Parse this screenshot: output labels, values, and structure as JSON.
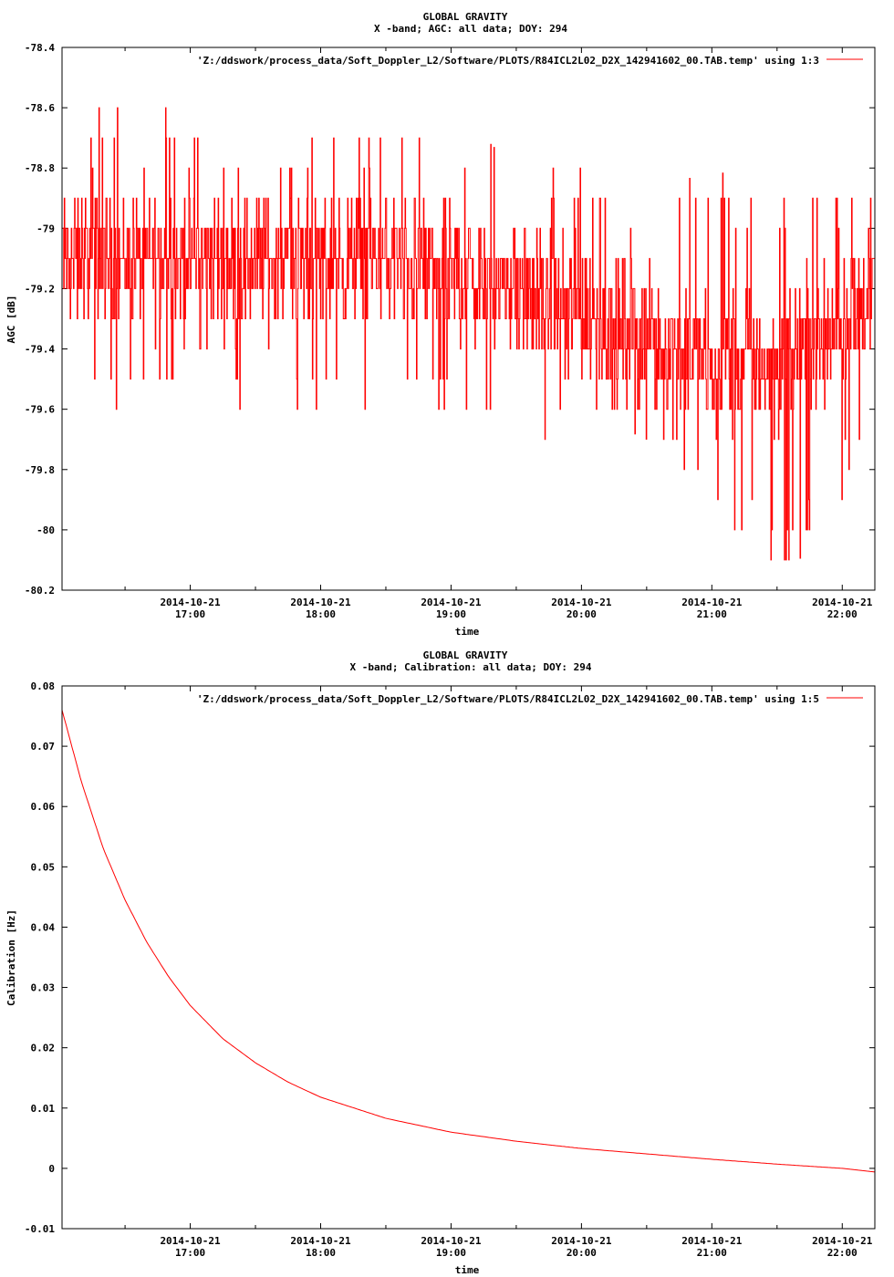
{
  "chart_data": [
    {
      "type": "line",
      "title": "GLOBAL GRAVITY",
      "subtitle": "X -band; AGC: all data; DOY: 294",
      "xlabel": "time",
      "ylabel": "AGC [dB]",
      "ylim": [
        -80.2,
        -78.4
      ],
      "yticks": [
        -78.4,
        -78.6,
        -78.8,
        -79,
        -79.2,
        -79.4,
        -79.6,
        -79.8,
        -80,
        -80.2
      ],
      "ytick_labels": [
        "-78.4",
        "-78.6",
        "-78.8",
        "-79",
        "-79.2",
        "-79.4",
        "-79.6",
        "-79.8",
        "-80",
        "-80.2"
      ],
      "xlim": [
        "2014-10-21 16:01",
        "2014-10-21 22:15"
      ],
      "xticks": [
        "2014-10-21 17:00",
        "2014-10-21 18:00",
        "2014-10-21 19:00",
        "2014-10-21 20:00",
        "2014-10-21 21:00",
        "2014-10-21 22:00"
      ],
      "xtick_labels": [
        {
          "date": "2014-10-21",
          "time": "17:00"
        },
        {
          "date": "2014-10-21",
          "time": "18:00"
        },
        {
          "date": "2014-10-21",
          "time": "19:00"
        },
        {
          "date": "2014-10-21",
          "time": "20:00"
        },
        {
          "date": "2014-10-21",
          "time": "21:00"
        },
        {
          "date": "2014-10-21",
          "time": "22:00"
        }
      ],
      "legend": "top-right",
      "grid": false,
      "series": [
        {
          "name": "'Z:/ddswork/process_data/Soft_Doppler_L2/Software/PLOTS/R84ICL2L02_D2X_142941602_00.TAB.temp' using 1:3",
          "color": "#ff0000",
          "style": "noisy",
          "x": [
            "2014-10-21 16:01",
            "2014-10-21 16:30",
            "2014-10-21 17:00",
            "2014-10-21 17:30",
            "2014-10-21 18:00",
            "2014-10-21 18:30",
            "2014-10-21 19:00",
            "2014-10-21 19:30",
            "2014-10-21 20:00",
            "2014-10-21 20:30",
            "2014-10-21 21:00",
            "2014-10-21 21:30",
            "2014-10-21 22:00",
            "2014-10-21 22:15"
          ],
          "mean": [
            -79.1,
            -79.1,
            -79.1,
            -79.1,
            -79.1,
            -79.1,
            -79.15,
            -79.2,
            -79.3,
            -79.35,
            -79.45,
            -79.45,
            -79.3,
            -79.2
          ],
          "upper": [
            -78.6,
            -78.6,
            -78.6,
            -78.7,
            -78.6,
            -78.7,
            -78.6,
            -78.8,
            -78.8,
            -78.9,
            -78.8,
            -78.9,
            -78.8,
            -78.8
          ],
          "lower": [
            -79.6,
            -79.6,
            -79.5,
            -79.7,
            -79.6,
            -79.6,
            -79.6,
            -79.8,
            -79.6,
            -79.7,
            -79.9,
            -80.2,
            -79.9,
            -79.6
          ]
        }
      ]
    },
    {
      "type": "line",
      "title": "GLOBAL GRAVITY",
      "subtitle": "X -band; Calibration: all data; DOY: 294",
      "xlabel": "time",
      "ylabel": "Calibration [Hz]",
      "ylim": [
        -0.01,
        0.08
      ],
      "yticks": [
        0.08,
        0.07,
        0.06,
        0.05,
        0.04,
        0.03,
        0.02,
        0.01,
        0,
        -0.01
      ],
      "ytick_labels": [
        "0.08",
        "0.07",
        "0.06",
        "0.05",
        "0.04",
        "0.03",
        "0.02",
        "0.01",
        "0",
        "-0.01"
      ],
      "xlim": [
        "2014-10-21 16:01",
        "2014-10-21 22:15"
      ],
      "xticks": [
        "2014-10-21 17:00",
        "2014-10-21 18:00",
        "2014-10-21 19:00",
        "2014-10-21 20:00",
        "2014-10-21 21:00",
        "2014-10-21 22:00"
      ],
      "xtick_labels": [
        {
          "date": "2014-10-21",
          "time": "17:00"
        },
        {
          "date": "2014-10-21",
          "time": "18:00"
        },
        {
          "date": "2014-10-21",
          "time": "19:00"
        },
        {
          "date": "2014-10-21",
          "time": "20:00"
        },
        {
          "date": "2014-10-21",
          "time": "21:00"
        },
        {
          "date": "2014-10-21",
          "time": "22:00"
        }
      ],
      "legend": "top-right",
      "grid": false,
      "series": [
        {
          "name": "'Z:/ddswork/process_data/Soft_Doppler_L2/Software/PLOTS/R84ICL2L02_D2X_142941602_00.TAB.temp' using 1:5",
          "color": "#ff0000",
          "style": "smooth",
          "x": [
            "2014-10-21 16:01",
            "2014-10-21 16:10",
            "2014-10-21 16:20",
            "2014-10-21 16:30",
            "2014-10-21 16:40",
            "2014-10-21 16:50",
            "2014-10-21 17:00",
            "2014-10-21 17:15",
            "2014-10-21 17:30",
            "2014-10-21 17:45",
            "2014-10-21 18:00",
            "2014-10-21 18:30",
            "2014-10-21 19:00",
            "2014-10-21 19:30",
            "2014-10-21 20:00",
            "2014-10-21 20:30",
            "2014-10-21 21:00",
            "2014-10-21 21:30",
            "2014-10-21 22:00",
            "2014-10-21 22:15"
          ],
          "values": [
            0.076,
            0.064,
            0.053,
            0.0445,
            0.0375,
            0.0318,
            0.027,
            0.0215,
            0.0175,
            0.0143,
            0.0118,
            0.0083,
            0.006,
            0.0045,
            0.0033,
            0.0024,
            0.0015,
            0.0007,
            0.0,
            -0.0006
          ]
        }
      ]
    }
  ]
}
